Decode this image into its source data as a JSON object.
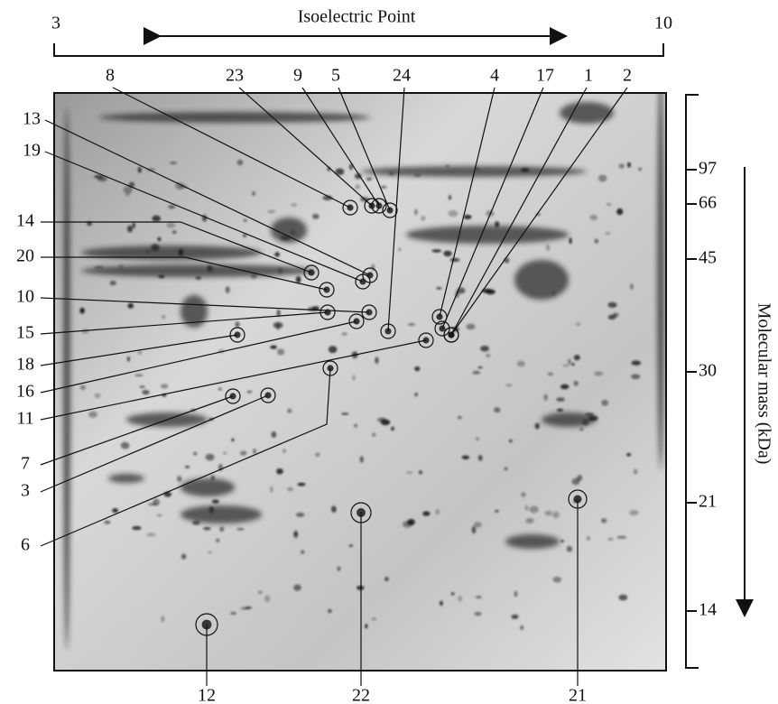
{
  "top_axis": {
    "title": "Isoelectric Point",
    "start": "3",
    "end": "10"
  },
  "right_axis": {
    "title": "Molecular mass (kDa)",
    "ticks": [
      "97",
      "66",
      "45",
      "30",
      "21",
      "14"
    ]
  },
  "spots": [
    "8",
    "23",
    "9",
    "5",
    "24",
    "4",
    "17",
    "1",
    "2",
    "13",
    "19",
    "14",
    "20",
    "10",
    "15",
    "18",
    "16",
    "11",
    "7",
    "3",
    "6",
    "12",
    "22",
    "21"
  ]
}
